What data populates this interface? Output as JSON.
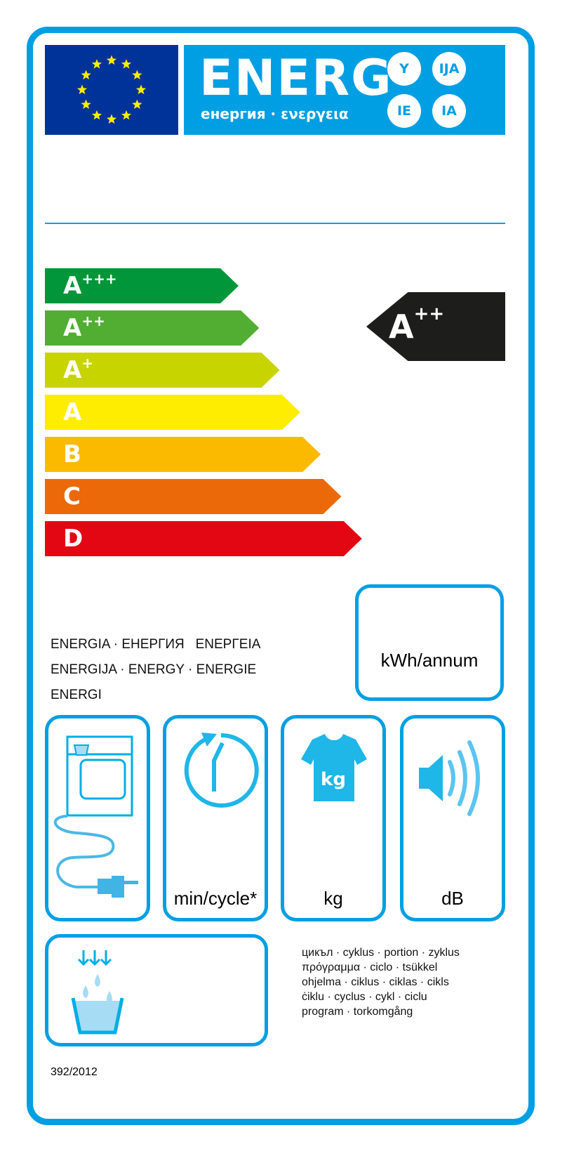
{
  "header": {
    "title": "ENERG",
    "subtitle": "енергия · ενεργεια",
    "suffixes": [
      "Y",
      "IJA",
      "IE",
      "IA"
    ],
    "eu_flag": "eu-flag-12-stars"
  },
  "scale": [
    {
      "letter": "A",
      "plus": "+++",
      "color": "#009639"
    },
    {
      "letter": "A",
      "plus": "++",
      "color": "#52ae32"
    },
    {
      "letter": "A",
      "plus": "+",
      "color": "#c8d400"
    },
    {
      "letter": "A",
      "plus": "",
      "color": "#ffed00"
    },
    {
      "letter": "B",
      "plus": "",
      "color": "#fbba00"
    },
    {
      "letter": "C",
      "plus": "",
      "color": "#eb6909"
    },
    {
      "letter": "D",
      "plus": "",
      "color": "#e30613"
    }
  ],
  "rating": {
    "letter": "A",
    "plus": "++",
    "color": "#1d1d1b"
  },
  "energy_text": [
    "ENERGIA · ЕНЕРГИЯ   ΕΝΕΡΓΕΙΑ",
    "ENERGIJA · ENERGY · ENERGIE",
    "ENERGI"
  ],
  "consumption": {
    "unit": "kWh/annum"
  },
  "icons": [
    {
      "icon": "dryer-plug-icon",
      "unit": ""
    },
    {
      "icon": "cycle-clock-icon",
      "unit": "min/cycle*"
    },
    {
      "icon": "tshirt-kg-icon",
      "unit": "kg",
      "badge": "kg"
    },
    {
      "icon": "speaker-icon",
      "unit": "dB"
    }
  ],
  "condensation": {
    "icon": "water-drops-container-icon"
  },
  "cycle_text": [
    "цикъл · cyklus · portion · zyklus",
    "πρόγραμμα · ciclo · tsükkel",
    "ohjelma · ciklus · ciklas · cikls",
    "ċiklu · cyclus · cykl · ciclu",
    "program · torkomgång"
  ],
  "regulation": "392/2012",
  "colors": {
    "frame": "#009fe3",
    "flag": "#003399",
    "star": "#ffed00",
    "icon": "#1fb6e8"
  }
}
